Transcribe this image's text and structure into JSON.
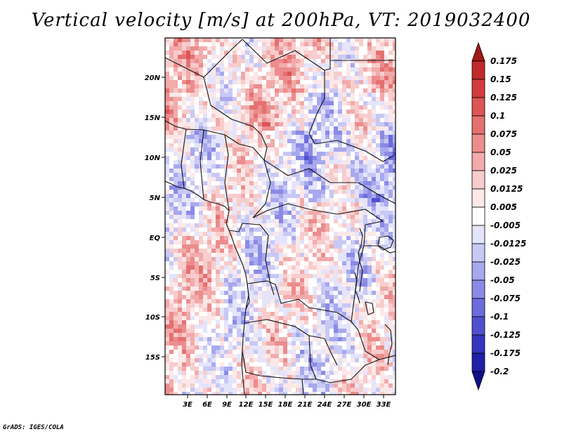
{
  "title": "Vertical velocity [m/s] at 200hPa, VT: 2019032400",
  "footer": "GrADS: IGES/COLA",
  "map": {
    "lon_labels": [
      "3E",
      "6E",
      "9E",
      "12E",
      "15E",
      "18E",
      "21E",
      "24E",
      "27E",
      "30E",
      "33E"
    ],
    "lat_labels": [
      "20N",
      "15N",
      "10N",
      "5N",
      "EQ",
      "5S",
      "10S",
      "15S"
    ]
  },
  "colorbar": {
    "labels": [
      "0.175",
      "0.15",
      "0.125",
      "0.1",
      "0.075",
      "0.05",
      "0.025",
      "0.0125",
      "0.005",
      "-0.005",
      "-0.0125",
      "-0.025",
      "-0.05",
      "-0.075",
      "-0.1",
      "-0.125",
      "-0.175",
      "-0.2"
    ],
    "colors": [
      "#a01818",
      "#c02a2a",
      "#d23c3c",
      "#dd5555",
      "#e57070",
      "#ec8c8c",
      "#f2aaaa",
      "#f8cccc",
      "#fce8e8",
      "#ffffff",
      "#e4e4fb",
      "#c8c8f5",
      "#a8a8ee",
      "#8a8ae6",
      "#6c6cdc",
      "#5050cf",
      "#3434bf",
      "#2020a8",
      "#10108c"
    ],
    "low_color": "#10108c",
    "high_color": "#a01818"
  }
}
